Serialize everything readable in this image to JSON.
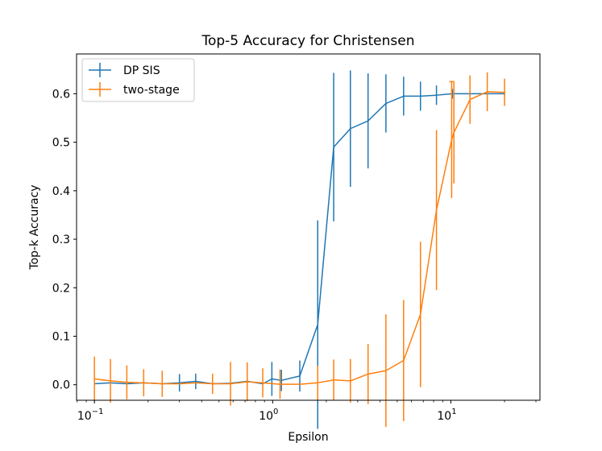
{
  "chart_data": {
    "type": "line",
    "title": "Top-5 Accuracy for Christensen",
    "xlabel": "Epsilon",
    "ylabel": "Top-k Accuracy",
    "xscale": "log",
    "xlim": [
      0.0794,
      31.6
    ],
    "ylim": [
      -0.032,
      0.682
    ],
    "xticks": [
      {
        "value": 0.1,
        "base": "10",
        "exp": "−1"
      },
      {
        "value": 1,
        "base": "10",
        "exp": "0"
      },
      {
        "value": 10,
        "base": "10",
        "exp": "1"
      }
    ],
    "yticks": [
      {
        "value": 0.0,
        "label": "0.0"
      },
      {
        "value": 0.1,
        "label": "0.1"
      },
      {
        "value": 0.2,
        "label": "0.2"
      },
      {
        "value": 0.3,
        "label": "0.3"
      },
      {
        "value": 0.4,
        "label": "0.4"
      },
      {
        "value": 0.5,
        "label": "0.5"
      },
      {
        "value": 0.6,
        "label": "0.6"
      }
    ],
    "legend_location": "upper-left",
    "series": [
      {
        "name": "DP SIS",
        "color": "#1f77b4",
        "x": [
          0.1,
          0.123,
          0.152,
          0.189,
          0.24,
          0.3,
          0.37,
          0.46,
          0.58,
          0.72,
          0.88,
          0.99,
          1.12,
          1.42,
          1.79,
          2.2,
          2.73,
          3.43,
          4.32,
          5.43,
          6.75,
          8.3,
          10.2,
          12.8,
          16.0,
          20.0
        ],
        "y": [
          0.002,
          0.004,
          0.002,
          0.004,
          0.002,
          0.004,
          0.007,
          0.002,
          0.003,
          0.007,
          0.002,
          0.012,
          0.009,
          0.018,
          0.124,
          0.49,
          0.528,
          0.544,
          0.58,
          0.595,
          0.595,
          0.597,
          0.6,
          0.6,
          0.6,
          0.6
        ],
        "err": [
          0.0,
          0.0,
          0.0,
          0.0,
          0.0,
          0.018,
          0.016,
          0.0,
          0.0,
          0.0,
          0.0,
          0.035,
          0.022,
          0.032,
          0.215,
          0.153,
          0.12,
          0.098,
          0.06,
          0.04,
          0.03,
          0.02,
          0.01,
          0.005,
          0.003,
          0.003
        ]
      },
      {
        "name": "two-stage",
        "color": "#ff7f0e",
        "x": [
          0.1,
          0.123,
          0.152,
          0.189,
          0.24,
          0.3,
          0.37,
          0.46,
          0.58,
          0.72,
          0.88,
          1.1,
          1.42,
          1.79,
          2.2,
          2.73,
          3.43,
          4.32,
          5.43,
          6.75,
          8.3,
          10.1,
          10.4,
          12.8,
          16.0,
          20.0
        ],
        "y": [
          0.012,
          0.008,
          0.005,
          0.004,
          0.002,
          0.002,
          0.004,
          0.002,
          0.002,
          0.006,
          0.004,
          0.001,
          0.001,
          0.004,
          0.01,
          0.008,
          0.022,
          0.029,
          0.05,
          0.145,
          0.36,
          0.505,
          0.52,
          0.588,
          0.604,
          0.603
        ],
        "err": [
          0.046,
          0.045,
          0.035,
          0.028,
          0.027,
          0.0,
          0.0,
          0.021,
          0.045,
          0.04,
          0.03,
          0.03,
          0.0,
          0.035,
          0.042,
          0.045,
          0.062,
          0.116,
          0.125,
          0.15,
          0.165,
          0.12,
          0.105,
          0.05,
          0.04,
          0.028
        ],
        "caps": [
          false,
          false,
          false,
          false,
          false,
          false,
          false,
          false,
          false,
          false,
          false,
          false,
          false,
          false,
          false,
          false,
          false,
          false,
          false,
          false,
          false,
          true,
          false,
          false,
          false,
          false
        ]
      }
    ]
  }
}
